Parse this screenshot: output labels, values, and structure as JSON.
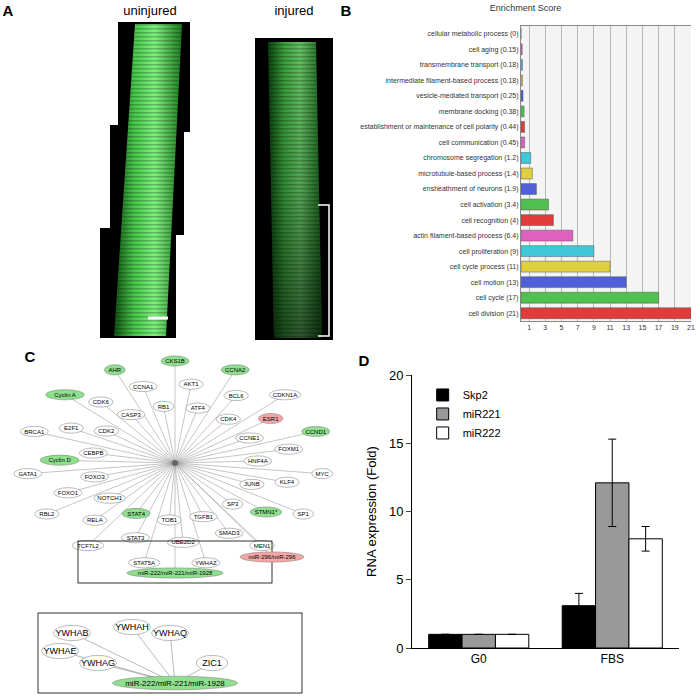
{
  "panel_labels": [
    "A",
    "B",
    "C",
    "D"
  ],
  "image_panel": {
    "labels": [
      "uninjured",
      "injured"
    ]
  },
  "network": {
    "nodes": [
      {
        "label": "CKS1B",
        "color": "#8ee08e"
      },
      {
        "label": "AKT1"
      },
      {
        "label": "ATF4"
      },
      {
        "label": "CCNA2",
        "color": "#8ee08e"
      },
      {
        "label": "BCL6"
      },
      {
        "label": "CDK4"
      },
      {
        "label": "CDKN1A"
      },
      {
        "label": "ESR1",
        "color": "#f4a6a6"
      },
      {
        "label": "CCNE1"
      },
      {
        "label": "CCND1",
        "color": "#8ee08e"
      },
      {
        "label": "FOXM1"
      },
      {
        "label": "HNF4A"
      },
      {
        "label": "MYC"
      },
      {
        "label": "KLF4"
      },
      {
        "label": "JUNB"
      },
      {
        "label": "SP1"
      },
      {
        "label": "STMN1*",
        "color": "#8ee08e"
      },
      {
        "label": "SP3"
      },
      {
        "label": "MEN1"
      },
      {
        "label": "SMAD3"
      },
      {
        "label": "TGFB1"
      },
      {
        "label": "YWHAZ"
      },
      {
        "label": "UBE2D2"
      },
      {
        "label": "TOB1"
      },
      {
        "label": "STAT5A"
      },
      {
        "label": "STAT3"
      },
      {
        "label": "STAT4",
        "color": "#8ee08e"
      },
      {
        "label": "TCF7L2"
      },
      {
        "label": "RELA"
      },
      {
        "label": "NOTCH1"
      },
      {
        "label": "RBL2"
      },
      {
        "label": "FOXO1"
      },
      {
        "label": "FOXO3"
      },
      {
        "label": "GATA1"
      },
      {
        "label": "Cyclin D",
        "color": "#8ee08e"
      },
      {
        "label": "CEBPB"
      },
      {
        "label": "BRCA1"
      },
      {
        "label": "E2F1"
      },
      {
        "label": "CDK2"
      },
      {
        "label": "Cyclin A",
        "color": "#8ee08e"
      },
      {
        "label": "CDK6"
      },
      {
        "label": "CASP3"
      },
      {
        "label": "AHR",
        "color": "#8ee08e"
      },
      {
        "label": "CCNA1"
      },
      {
        "label": "RB1"
      }
    ],
    "mir_node": {
      "label": "miR-222/miR-221/miR-1928",
      "color": "#8ee08e"
    },
    "other_mir_node": {
      "label": "miR-296/miR-296",
      "color": "#f4a6a6"
    },
    "inset": {
      "nodes": [
        "YWHAB",
        "YWHAE",
        "YWHAG",
        "YWHAH",
        "YWHAQ",
        "ZIC1"
      ],
      "mir_node": {
        "label": "miR-222/miR-221/miR-1928",
        "color": "#8ee08e"
      }
    }
  },
  "chart_data": [
    {
      "type": "bar",
      "title": "Enrichment Score",
      "orientation": "horizontal",
      "categories": [
        "cellular metabolic process (0)",
        "cell aging (0.15)",
        "transmembrane transport (0.18)",
        "intermediate filament-based process (0.18)",
        "vesicle-mediated transport (0.25)",
        "membrane docking (0.38)",
        "establishment or maintenance of cell polarity (0.44)",
        "cell communication (0.45)",
        "chromosome segregation (1.2)",
        "microtubule-based process (1.4)",
        "ensheathment of neurons (1.9)",
        "cell activation (3.4)",
        "cell recognition (4)",
        "actin filament-based process (6.4)",
        "cell proliferation (9)",
        "cell cycle process (11)",
        "cell motion (13)",
        "cell cycle (17)",
        "cell division (21)"
      ],
      "values": [
        0,
        0.15,
        0.18,
        0.18,
        0.25,
        0.38,
        0.44,
        0.45,
        1.2,
        1.4,
        1.9,
        3.4,
        4,
        6.4,
        9,
        11,
        13,
        17,
        21
      ],
      "colors": [
        "#e03c3c",
        "#e060c0",
        "#40c8d8",
        "#e0d040",
        "#5060d8",
        "#50c050",
        "#e03c3c",
        "#e060c0",
        "#40c8d8",
        "#e0d040",
        "#5060d8",
        "#50c050",
        "#e03c3c",
        "#e060c0",
        "#40c8d8",
        "#e0d040",
        "#5060d8",
        "#50c050",
        "#e03c3c"
      ],
      "xlim": [
        0,
        21
      ],
      "xticks": [
        1,
        3,
        5,
        7,
        9,
        11,
        13,
        15,
        17,
        19,
        21
      ],
      "grid": true
    },
    {
      "type": "bar",
      "categories": [
        "G0",
        "FBS"
      ],
      "ylabel": "RNA expression (Fold)",
      "ylim": [
        0,
        20
      ],
      "yticks": [
        0,
        5,
        10,
        15,
        20
      ],
      "legend": "upper left",
      "grid": false,
      "series": [
        {
          "name": "Skp2",
          "color": "#000000",
          "values": [
            1,
            3.1
          ],
          "error": [
            null,
            0.9
          ]
        },
        {
          "name": "miR221",
          "color": "#999999",
          "values": [
            1,
            12.1
          ],
          "error": [
            null,
            3.2
          ]
        },
        {
          "name": "miR222",
          "color": "#ffffff",
          "values": [
            1,
            8.0
          ],
          "error": [
            null,
            0.9
          ]
        }
      ]
    }
  ]
}
